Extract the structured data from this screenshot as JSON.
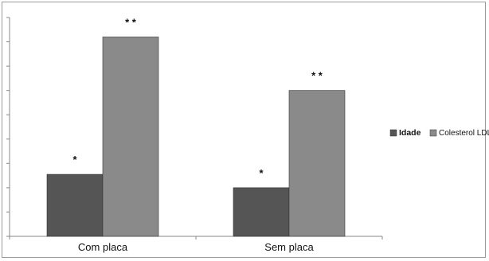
{
  "chart_data": {
    "type": "bar",
    "categories": [
      "Com placa",
      "Sem placa"
    ],
    "series": [
      {
        "name": "Idade",
        "values": [
          2.55,
          2.0
        ],
        "color": "#555555",
        "annotations": [
          "*",
          "*"
        ]
      },
      {
        "name": "Colesterol LDL",
        "values": [
          8.2,
          6.0
        ],
        "color": "#8a8a8a",
        "annotations": [
          "* *",
          "* *"
        ]
      }
    ],
    "ylim": [
      0,
      9
    ],
    "y_tick_labels_shown": false,
    "grid": false,
    "legend_position": "right",
    "title": "",
    "xlabel": "",
    "ylabel": ""
  }
}
